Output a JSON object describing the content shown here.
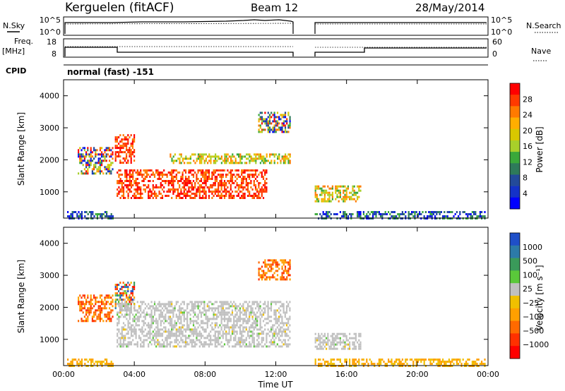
{
  "header": {
    "site": "Kerguelen (fitACF)",
    "beam": "Beam 12",
    "date": "28/May/2014"
  },
  "top_panels": {
    "nsky_label": "N.Sky",
    "nsky_ticks": [
      "10^5",
      "10^0"
    ],
    "nsearch_label": "N.Search",
    "nsearch_ticks": [
      "10^5",
      "10^0"
    ],
    "freq_label": "Freq.",
    "freq_unit": "[MHz]",
    "freq_ticks": [
      "18",
      "8"
    ],
    "nave_label": "Nave",
    "nave_ticks": [
      "60",
      "0"
    ],
    "cpid_label": "CPID",
    "cpid_value": "normal (fast) -151"
  },
  "colorbars": {
    "power": {
      "label": "Power [dB]",
      "ticks": [
        "28",
        "24",
        "20",
        "16",
        "12",
        "8",
        "4"
      ],
      "colors": [
        "#ff0000",
        "#ff3a00",
        "#ff7a00",
        "#ffae00",
        "#d8c800",
        "#a8d02a",
        "#3aa83a",
        "#2e7a5a",
        "#234a9a",
        "#1432c8",
        "#0000ff"
      ]
    },
    "velocity": {
      "label": "Velocity [m s⁻¹]",
      "ticks": [
        "1000",
        "500",
        "100",
        "25",
        "−25",
        "−100",
        "−500",
        "−1000"
      ],
      "colors": [
        "#1f4fc8",
        "#2c7aa8",
        "#3a9a5a",
        "#5ac83a",
        "#c0c0c0",
        "#f0c000",
        "#ffa000",
        "#ff6a00",
        "#ff3000",
        "#ff0000"
      ]
    }
  },
  "chart_data": [
    {
      "type": "heatmap",
      "title": "Power",
      "ylabel": "Slant Range [km]",
      "xlabel": "Time UT",
      "x_ticks": [
        "00:00",
        "04:00",
        "08:00",
        "12:00",
        "16:00",
        "20:00",
        "00:00"
      ],
      "y_ticks": [
        "1000",
        "2000",
        "3000",
        "4000"
      ],
      "xlim_hours": [
        0,
        24
      ],
      "ylim_km": [
        180,
        4500
      ],
      "data_gap_hours": [
        13,
        14.2
      ],
      "regions": [
        {
          "t": [
            0.2,
            2.8
          ],
          "r": [
            180,
            400
          ],
          "level": "weak"
        },
        {
          "t": [
            0.8,
            2.8
          ],
          "r": [
            1600,
            2400
          ],
          "level": "mixed"
        },
        {
          "t": [
            2.9,
            4.0
          ],
          "r": [
            1900,
            2800
          ],
          "level": "strong"
        },
        {
          "t": [
            3.0,
            11.5
          ],
          "r": [
            800,
            1700
          ],
          "level": "strong"
        },
        {
          "t": [
            6.0,
            12.8
          ],
          "r": [
            1900,
            2200
          ],
          "level": "moderate"
        },
        {
          "t": [
            11.0,
            12.8
          ],
          "r": [
            2900,
            3500
          ],
          "level": "mixed"
        },
        {
          "t": [
            14.2,
            16.8
          ],
          "r": [
            700,
            1200
          ],
          "level": "moderate"
        },
        {
          "t": [
            14.2,
            23.8
          ],
          "r": [
            180,
            400
          ],
          "level": "weak"
        }
      ]
    },
    {
      "type": "heatmap",
      "title": "Velocity",
      "ylabel": "Slant Range [km]",
      "xlabel": "Time UT",
      "x_ticks": [
        "00:00",
        "04:00",
        "08:00",
        "12:00",
        "16:00",
        "20:00",
        "00:00"
      ],
      "y_ticks": [
        "1000",
        "2000",
        "3000",
        "4000"
      ],
      "xlim_hours": [
        0,
        24
      ],
      "ylim_km": [
        180,
        4500
      ],
      "data_gap_hours": [
        13,
        14.2
      ],
      "regions": [
        {
          "t": [
            0.2,
            2.8
          ],
          "r": [
            180,
            400
          ],
          "level": "slow-away"
        },
        {
          "t": [
            0.8,
            2.8
          ],
          "r": [
            1600,
            2400
          ],
          "level": "away"
        },
        {
          "t": [
            2.9,
            4.0
          ],
          "r": [
            1900,
            2800
          ],
          "level": "mixed"
        },
        {
          "t": [
            3.0,
            12.8
          ],
          "r": [
            800,
            2200
          ],
          "level": "near-zero"
        },
        {
          "t": [
            11.0,
            12.8
          ],
          "r": [
            2900,
            3500
          ],
          "level": "away"
        },
        {
          "t": [
            14.2,
            16.8
          ],
          "r": [
            700,
            1200
          ],
          "level": "near-zero"
        },
        {
          "t": [
            14.2,
            23.8
          ],
          "r": [
            180,
            400
          ],
          "level": "slow-away"
        }
      ]
    }
  ]
}
